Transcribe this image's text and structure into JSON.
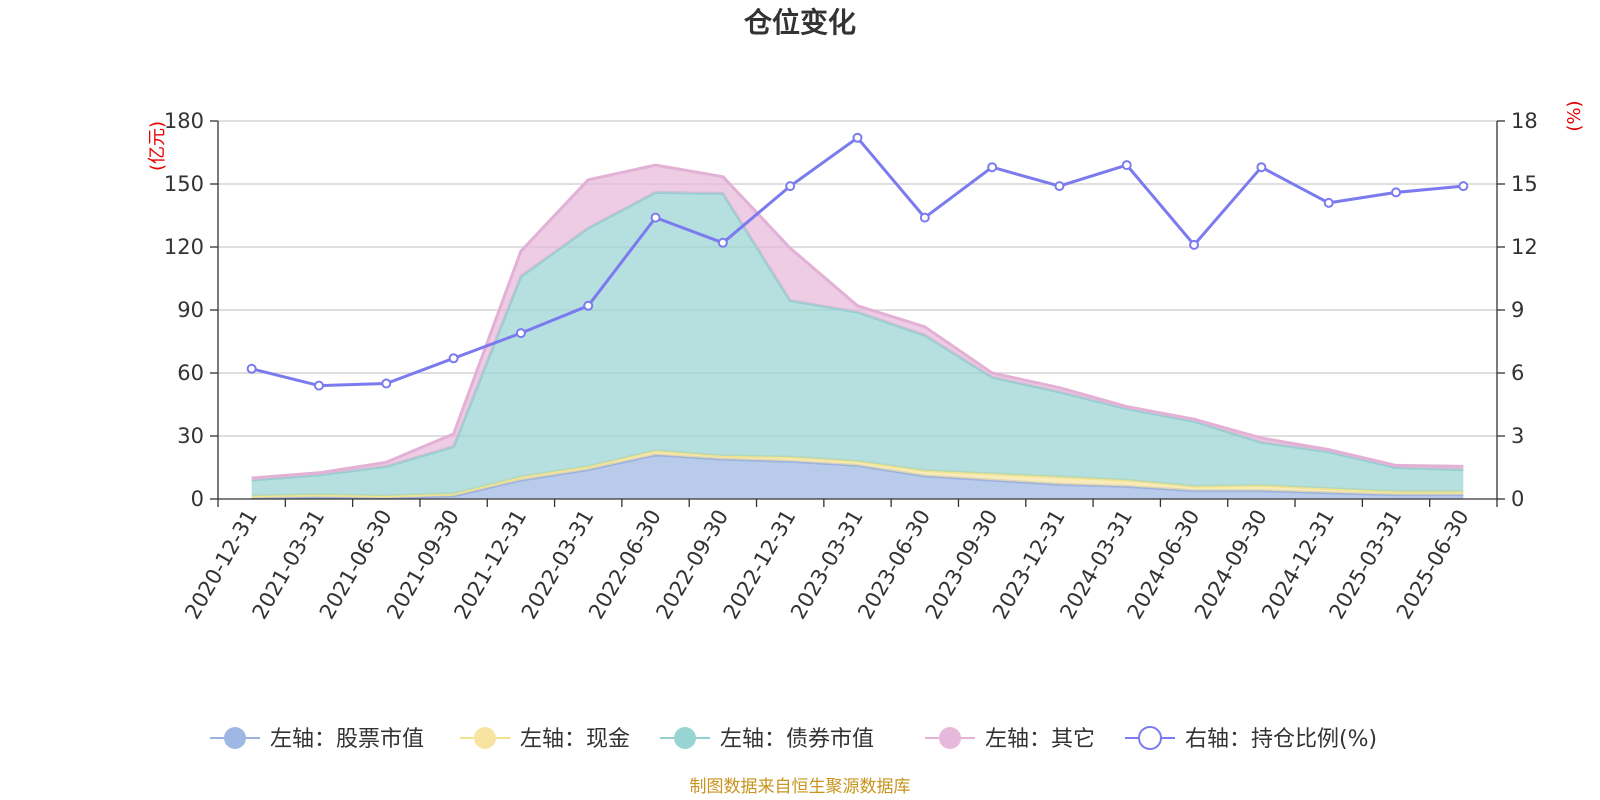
{
  "colors": {
    "stock": "#9eb7e3",
    "cash": "#f6e4a0",
    "bond": "#98d4d2",
    "other": "#e6b8d9",
    "ratio": "#7b7bef",
    "stock_line": "#9cb1dd",
    "cash_line": "#f1e28e",
    "bond_line": "#93cfd0",
    "other_line": "#e3b1d5"
  },
  "chart_data": {
    "type": "area",
    "title": "仓位变化",
    "categories": [
      "2020-12-31",
      "2021-03-31",
      "2021-06-30",
      "2021-09-30",
      "2021-12-31",
      "2022-03-31",
      "2022-06-30",
      "2022-09-30",
      "2022-12-31",
      "2023-03-31",
      "2023-06-30",
      "2023-09-30",
      "2023-12-31",
      "2024-03-31",
      "2024-06-30",
      "2024-09-30",
      "2024-12-31",
      "2025-03-31",
      "2025-06-30"
    ],
    "left_axis": {
      "unit": "(亿元)",
      "min": 0,
      "max": 180,
      "ticks": [
        0,
        30,
        60,
        90,
        120,
        150,
        180
      ]
    },
    "right_axis": {
      "unit": "(%)",
      "min": 0,
      "max": 18,
      "ticks": [
        0,
        3,
        6,
        9,
        12,
        15,
        18
      ]
    },
    "series": [
      {
        "key": "stock",
        "name": "左轴：股票市值",
        "axis": "left",
        "stacked": true,
        "values": [
          0.5,
          1,
          0.5,
          1.5,
          9,
          14,
          21,
          19,
          18,
          16,
          11,
          9,
          7,
          6,
          4,
          4,
          3,
          2,
          2
        ]
      },
      {
        "key": "cash",
        "name": "左轴：现金",
        "axis": "left",
        "stacked": true,
        "values": [
          1,
          1,
          1,
          1,
          1.5,
          1.5,
          2,
          1.5,
          2,
          2,
          2.5,
          3,
          3.5,
          3,
          2,
          2.5,
          2,
          1.5,
          1.5
        ]
      },
      {
        "key": "bond",
        "name": "左轴：债券市值",
        "axis": "left",
        "stacked": true,
        "values": [
          7.5,
          9.5,
          14,
          22.5,
          95.5,
          113.5,
          123,
          125,
          74.5,
          71,
          64.5,
          46,
          40.5,
          34,
          31,
          20.5,
          17.5,
          11.5,
          10.5
        ]
      },
      {
        "key": "other",
        "name": "左轴：其它",
        "axis": "left",
        "stacked": true,
        "values": [
          1,
          1,
          2,
          6,
          12,
          23,
          13,
          8,
          25,
          3,
          4,
          2,
          2,
          1,
          1,
          2,
          1,
          1,
          1.5
        ]
      },
      {
        "key": "ratio",
        "name": "右轴：持仓比例(%)",
        "axis": "right",
        "stacked": false,
        "values": [
          6.2,
          5.4,
          5.5,
          6.7,
          7.9,
          9.2,
          13.4,
          12.2,
          14.9,
          17.2,
          13.4,
          15.8,
          14.9,
          15.9,
          12.1,
          15.8,
          14.1,
          14.6,
          14.9
        ]
      }
    ],
    "legend_position": "bottom",
    "grid": true
  },
  "footer": {
    "source": "制图数据来自恒生聚源数据库"
  }
}
